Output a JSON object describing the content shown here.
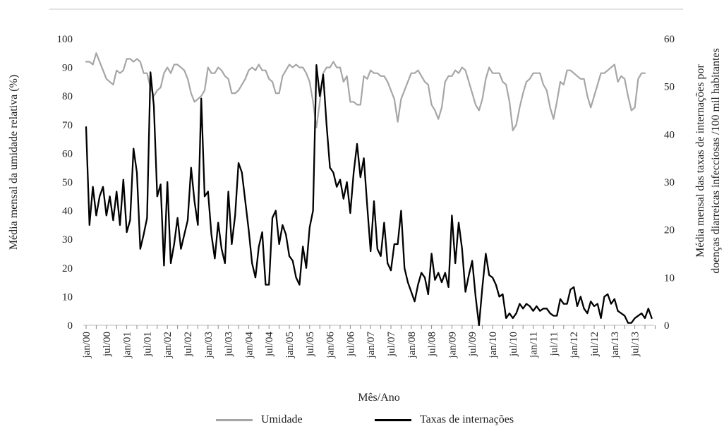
{
  "chart_data": {
    "type": "line",
    "xlabel": "Mês/Ano",
    "ylabel_left": "Média mensal da umidade relativa (%)",
    "ylabel_right_line1": "Média mensal das taxas de internações por",
    "ylabel_right_line2": "doenças diarreicas infecciosas /100 mil habitantes",
    "ylim_left": [
      0,
      100
    ],
    "ylim_right": [
      0,
      60
    ],
    "yticks_left": [
      0,
      10,
      20,
      30,
      40,
      50,
      60,
      70,
      80,
      90,
      100
    ],
    "yticks_right": [
      0,
      10,
      20,
      30,
      40,
      50,
      60
    ],
    "x_tick_labels": [
      "jan/00",
      "jul/00",
      "jan/01",
      "jul/01",
      "jan/02",
      "jul/02",
      "jan/03",
      "jul/03",
      "jan/04",
      "jul/04",
      "jan/05",
      "jul/05",
      "jan/06",
      "jul/06",
      "jan/07",
      "jul/07",
      "jan/08",
      "jul/08",
      "jan/09",
      "jul/09",
      "jan/10",
      "jul/10",
      "jan/11",
      "jul/11",
      "jan/12",
      "jul/12",
      "jan/13",
      "jul/13"
    ],
    "n_months": 168,
    "grid": false,
    "legend_position": "bottom",
    "series": [
      {
        "name": "Umidade",
        "axis": "left",
        "color": "#a6a6a6",
        "values": [
          92,
          92,
          91,
          95,
          92,
          89,
          86,
          85,
          84,
          89,
          88,
          89,
          93,
          93,
          92,
          93,
          92,
          88,
          88,
          83,
          80,
          82,
          83,
          88,
          90,
          88,
          91,
          91,
          90,
          89,
          86,
          81,
          78,
          79,
          80,
          82,
          90,
          88,
          88,
          90,
          89,
          87,
          86,
          81,
          81,
          82,
          84,
          86,
          89,
          90,
          89,
          91,
          89,
          89,
          86,
          85,
          81,
          81,
          87,
          89,
          91,
          90,
          91,
          90,
          90,
          88,
          85,
          78,
          69,
          78,
          88,
          90,
          90,
          92,
          90,
          90,
          85,
          87,
          78,
          78,
          77,
          77,
          87,
          86,
          89,
          88,
          88,
          87,
          87,
          85,
          82,
          79,
          71,
          79,
          82,
          85,
          88,
          88,
          89,
          87,
          85,
          84,
          77,
          75,
          72,
          76,
          85,
          87,
          87,
          89,
          88,
          90,
          89,
          85,
          81,
          77,
          75,
          79,
          86,
          90,
          88,
          88,
          88,
          85,
          84,
          78,
          68,
          70,
          76,
          81,
          85,
          86,
          88,
          88,
          88,
          84,
          82,
          76,
          72,
          78,
          85,
          84,
          89,
          89,
          88,
          87,
          86,
          86,
          80,
          76,
          80,
          84,
          88,
          88,
          89,
          90,
          91,
          85,
          87,
          86,
          80,
          75,
          76,
          86,
          88,
          88
        ]
      },
      {
        "name": "Taxas de internações",
        "axis": "right",
        "color": "#000000",
        "values": [
          41.5,
          21,
          29,
          23,
          27,
          29,
          23,
          27,
          22,
          28,
          21,
          30.5,
          19.5,
          22,
          37,
          32,
          16,
          19,
          22.5,
          53,
          46,
          27,
          29.5,
          12.5,
          30,
          13,
          17,
          22.5,
          16,
          19,
          22,
          33,
          26,
          21,
          47.5,
          27,
          28,
          19,
          14,
          21.5,
          16,
          13,
          28,
          17,
          23,
          34,
          32,
          26,
          20,
          13,
          10,
          16.5,
          19.5,
          8.5,
          8.5,
          22.5,
          24,
          17,
          21,
          19,
          14.5,
          13.5,
          10,
          8.5,
          16.5,
          12,
          20.5,
          24,
          54.5,
          48,
          52.5,
          42,
          33,
          32,
          29,
          30.5,
          26.5,
          30,
          23.5,
          32,
          38,
          31,
          35,
          25,
          15.5,
          26,
          16,
          14.5,
          21.5,
          13,
          11.5,
          17,
          17,
          24,
          12,
          9,
          7,
          5,
          8.5,
          11,
          10,
          6.5,
          15,
          9.5,
          11,
          9,
          11,
          8,
          23,
          13,
          21.5,
          16,
          7,
          10.5,
          13.5,
          6,
          0,
          8,
          15,
          10.5,
          10,
          8.5,
          6,
          6.5,
          1.5,
          2.5,
          1.5,
          2.5,
          4.5,
          3.5,
          4.5,
          4,
          3,
          4,
          3,
          3.5,
          3.5,
          2.5,
          2,
          2,
          5.5,
          4.5,
          4.5,
          7.5,
          8,
          4,
          6,
          3.5,
          2.5,
          5,
          4,
          4.5,
          1.5,
          6,
          6.5,
          4.5,
          5.5,
          3,
          2.5,
          2,
          0.5,
          0.5,
          1.5,
          2,
          2.5,
          1.5,
          3.5,
          1.5
        ]
      }
    ]
  }
}
